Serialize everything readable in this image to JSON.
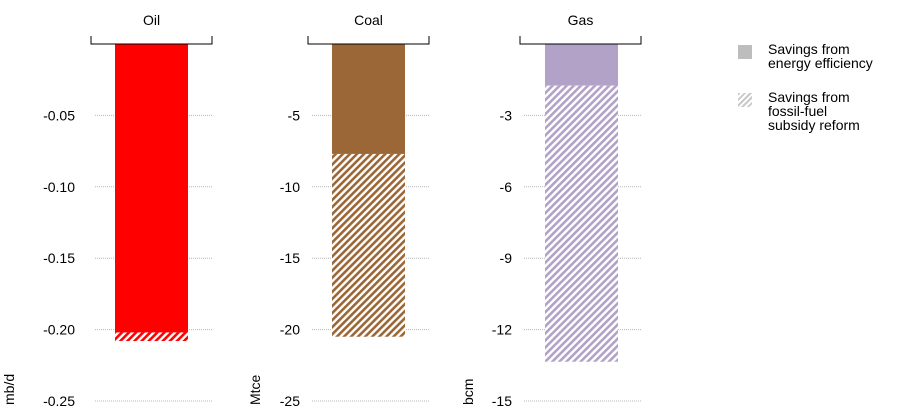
{
  "chart_data": [
    {
      "type": "bar",
      "title": "Oil",
      "ylabel": "mb/d",
      "ylim": [
        -0.25,
        0
      ],
      "yticks": [
        "-0.05",
        "-0.10",
        "-0.15",
        "-0.20",
        "-0.25"
      ],
      "ytick_values": [
        -0.05,
        -0.1,
        -0.15,
        -0.2,
        -0.25
      ],
      "colors": {
        "efficiency": "#ff0000",
        "subsidy": "#ff0000"
      },
      "series": [
        {
          "name": "Savings from energy efficiency",
          "values": [
            -0.202
          ]
        },
        {
          "name": "Savings from fossil-fuel subsidy reform",
          "values": [
            -0.006
          ]
        }
      ]
    },
    {
      "type": "bar",
      "title": "Coal",
      "ylabel": "Mtce",
      "ylim": [
        -25,
        0
      ],
      "yticks": [
        "-5",
        "-10",
        "-15",
        "-20",
        "-25"
      ],
      "ytick_values": [
        -5,
        -10,
        -15,
        -20,
        -25
      ],
      "colors": {
        "efficiency": "#9b6737",
        "subsidy": "#9b6737"
      },
      "series": [
        {
          "name": "Savings from energy efficiency",
          "values": [
            -7.7
          ]
        },
        {
          "name": "Savings from fossil-fuel subsidy reform",
          "values": [
            -12.8
          ]
        }
      ]
    },
    {
      "type": "bar",
      "title": "Gas",
      "ylabel": "bcm",
      "ylim": [
        -15,
        0
      ],
      "yticks": [
        "-3",
        "-6",
        "-9",
        "-12",
        "-15"
      ],
      "ytick_values": [
        -3,
        -6,
        -9,
        -12,
        -15
      ],
      "colors": {
        "efficiency": "#b2a2c7",
        "subsidy": "#b2a2c7"
      },
      "series": [
        {
          "name": "Savings from energy efficiency",
          "values": [
            -1.75
          ]
        },
        {
          "name": "Savings from fossil-fuel subsidy reform",
          "values": [
            -11.6
          ]
        }
      ]
    }
  ],
  "legend": {
    "placement": "right",
    "items": [
      {
        "label": "Savings from\nenergy efficiency",
        "style": "solid",
        "color": "#bdbdbd"
      },
      {
        "label": "Savings from\nfossil-fuel\nsubsidy reform",
        "style": "hatched",
        "color": "#c9c9c9"
      }
    ]
  }
}
